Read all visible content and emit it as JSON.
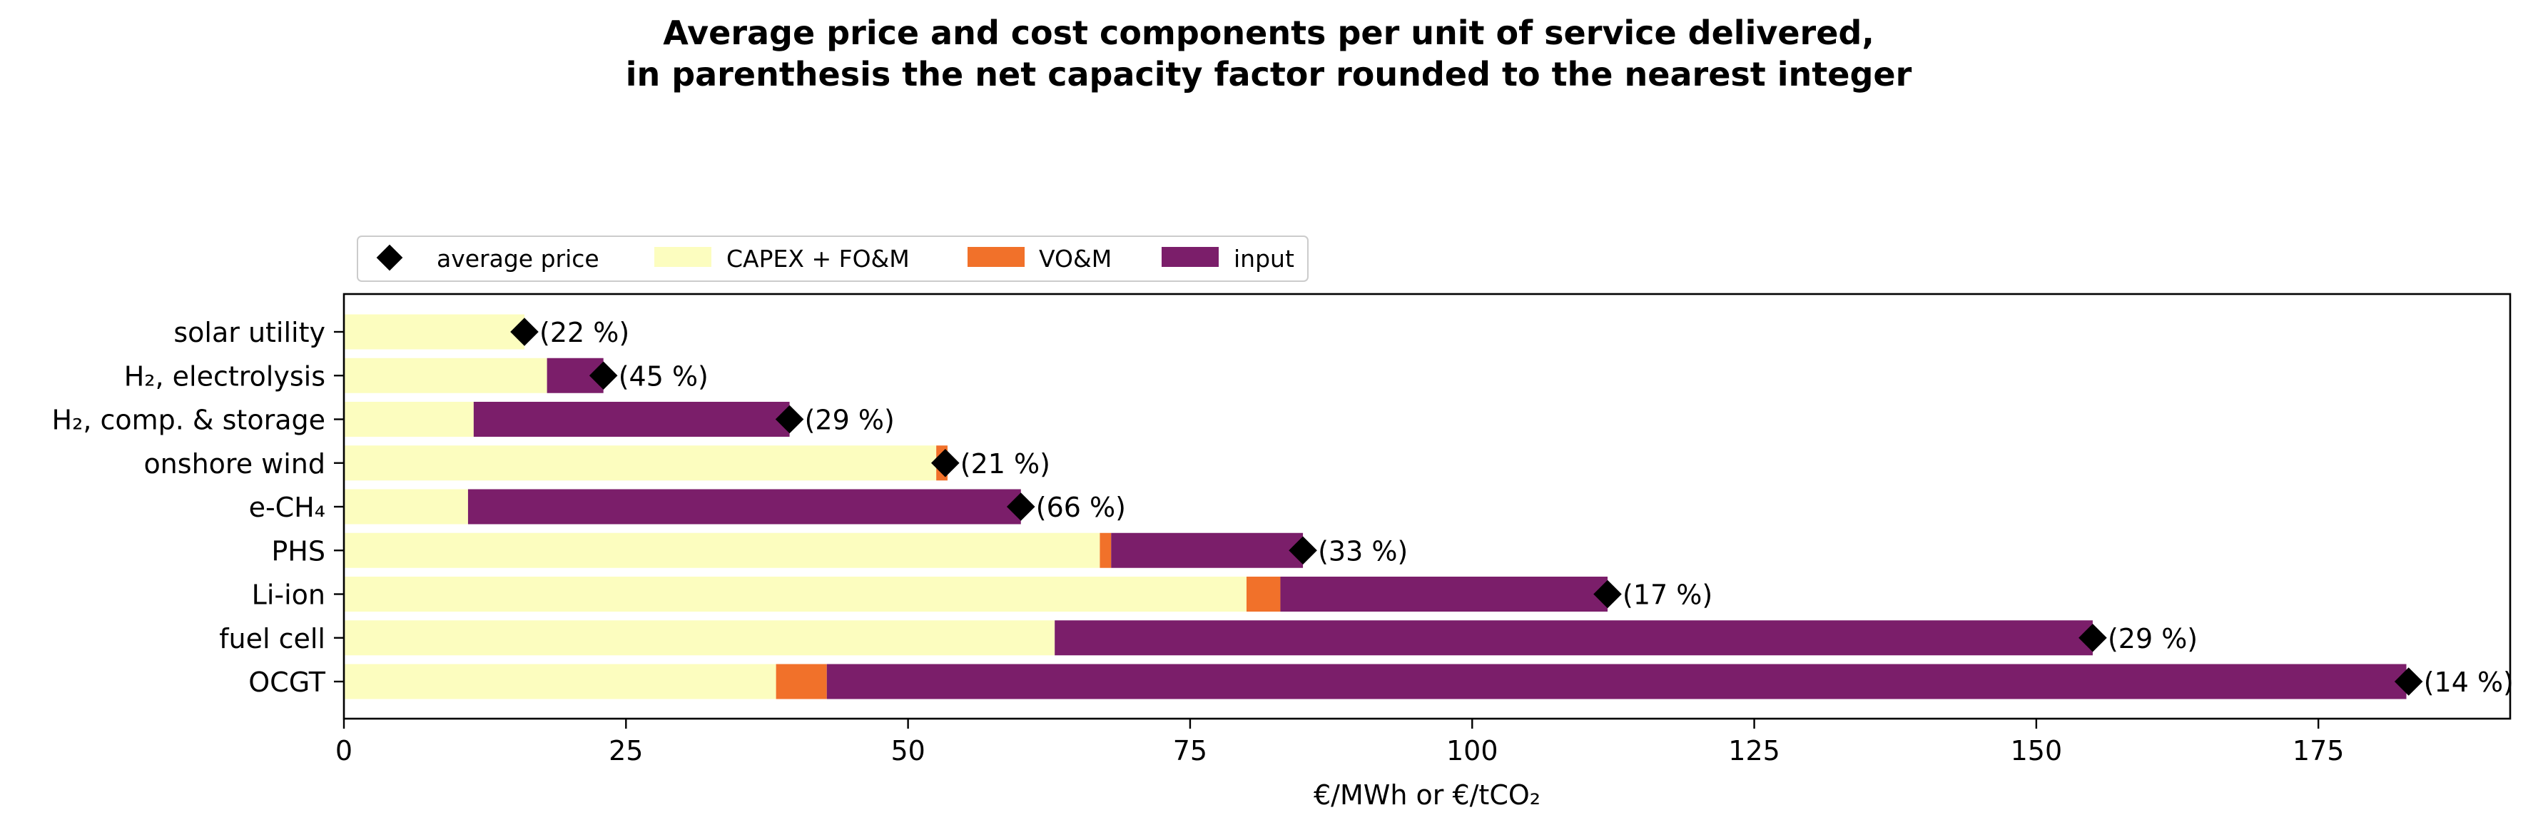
{
  "chart_data": {
    "type": "bar",
    "orientation": "horizontal",
    "stacked": true,
    "title_line1": "Average price and cost components per unit of service delivered,",
    "title_line2": "in parenthesis the net capacity factor rounded to the nearest integer",
    "xlabel": "€/MWh or €/tCO₂",
    "ylabel": "",
    "xlim": [
      0,
      192
    ],
    "xticks": [
      0,
      25,
      50,
      75,
      100,
      125,
      150,
      175
    ],
    "grid": false,
    "legend_position": "top-left",
    "legend": [
      {
        "label": "average price",
        "marker": "diamond",
        "color": "#000000"
      },
      {
        "label": "CAPEX + FO&M",
        "color": "#fcfdbf"
      },
      {
        "label": "VO&M",
        "color": "#f1712a"
      },
      {
        "label": "input",
        "color": "#7b1e6a"
      }
    ],
    "categories": [
      "solar utility",
      "H₂, electrolysis",
      "H₂, comp. & storage",
      "onshore wind",
      "e-CH₄",
      "PHS",
      "Li-ion",
      "fuel cell",
      "OCGT"
    ],
    "series": [
      {
        "name": "CAPEX + FO&M",
        "color": "#fcfdbf",
        "values": [
          16,
          18,
          11.5,
          52.5,
          11,
          67,
          80,
          63,
          38.3
        ]
      },
      {
        "name": "VO&M",
        "color": "#f1712a",
        "values": [
          0,
          0,
          0,
          1,
          0,
          1,
          3,
          0,
          4.5
        ]
      },
      {
        "name": "input",
        "color": "#7b1e6a",
        "values": [
          0,
          5,
          28,
          0,
          49,
          17,
          29,
          92,
          140
        ]
      }
    ],
    "average_price": [
      16,
      23,
      39.5,
      53.3,
      60,
      85,
      112,
      155,
      183
    ],
    "capacity_factor_labels": [
      "(22 %)",
      "(45 %)",
      "(29 %)",
      "(21 %)",
      "(66 %)",
      "(33 %)",
      "(17 %)",
      "(29 %)",
      "(14 %)"
    ]
  }
}
